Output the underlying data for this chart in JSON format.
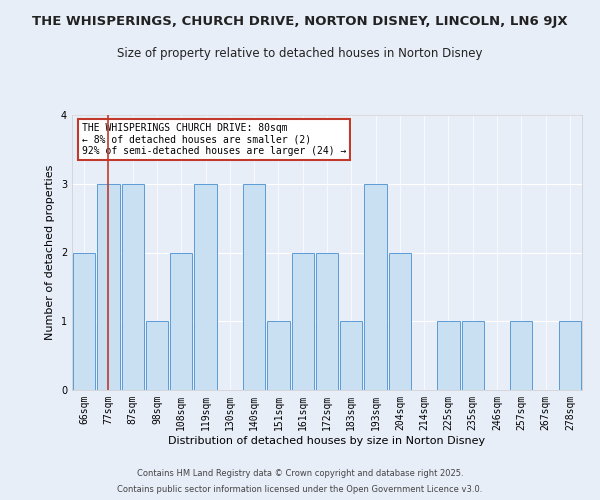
{
  "title": "THE WHISPERINGS, CHURCH DRIVE, NORTON DISNEY, LINCOLN, LN6 9JX",
  "subtitle": "Size of property relative to detached houses in Norton Disney",
  "xlabel": "Distribution of detached houses by size in Norton Disney",
  "ylabel": "Number of detached properties",
  "categories": [
    "66sqm",
    "77sqm",
    "87sqm",
    "98sqm",
    "108sqm",
    "119sqm",
    "130sqm",
    "140sqm",
    "151sqm",
    "161sqm",
    "172sqm",
    "183sqm",
    "193sqm",
    "204sqm",
    "214sqm",
    "225sqm",
    "235sqm",
    "246sqm",
    "257sqm",
    "267sqm",
    "278sqm"
  ],
  "values": [
    2,
    3,
    3,
    1,
    2,
    3,
    0,
    3,
    1,
    2,
    2,
    1,
    3,
    2,
    0,
    1,
    1,
    0,
    1,
    0,
    1
  ],
  "bar_color": "#c9dff2",
  "bar_edge_color": "#5b9bd5",
  "vline_x": 1,
  "vline_color": "#c0392b",
  "ylim": [
    0,
    4
  ],
  "yticks": [
    0,
    1,
    2,
    3,
    4
  ],
  "annotation_title": "THE WHISPERINGS CHURCH DRIVE: 80sqm",
  "annotation_line1": "← 8% of detached houses are smaller (2)",
  "annotation_line2": "92% of semi-detached houses are larger (24) →",
  "annotation_box_edge": "#c0392b",
  "background_color": "#e8eef8",
  "plot_bg_color": "#e8eef8",
  "footer1": "Contains HM Land Registry data © Crown copyright and database right 2025.",
  "footer2": "Contains public sector information licensed under the Open Government Licence v3.0.",
  "title_fontsize": 9.5,
  "subtitle_fontsize": 8.5,
  "xlabel_fontsize": 8,
  "ylabel_fontsize": 8,
  "tick_fontsize": 7,
  "footer_fontsize": 6
}
